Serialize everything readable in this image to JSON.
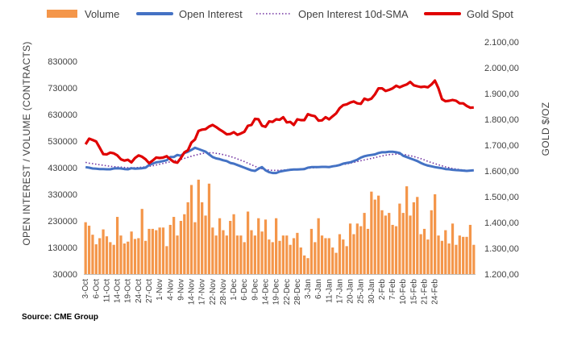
{
  "chart_data": {
    "type": "bar+line",
    "title": "",
    "source": "Source: CME Group",
    "legend": {
      "placement": "top",
      "items": [
        {
          "label": "Volume",
          "kind": "bar",
          "color": "#F4964A"
        },
        {
          "label": "Open Interest",
          "kind": "line",
          "color": "#4472C4"
        },
        {
          "label": "Open Interest 10d-SMA",
          "kind": "dotted",
          "color": "#7030A0"
        },
        {
          "label": "Gold Spot",
          "kind": "line",
          "color": "#E00000"
        }
      ]
    },
    "y_left": {
      "label": "OPEN INTEREST / VOLUME (CONTRACTS)",
      "range": [
        30000,
        900000
      ],
      "ticks": [
        "830000",
        "730000",
        "630000",
        "530000",
        "430000",
        "330000",
        "230000",
        "130000",
        "30000"
      ],
      "tick_values": [
        830000,
        730000,
        630000,
        530000,
        430000,
        330000,
        230000,
        130000,
        30000
      ]
    },
    "y_right": {
      "label": "GOLD $/OZ",
      "range": [
        1200,
        2100
      ],
      "ticks": [
        "2.100,00",
        "2.000,00",
        "1.900,00",
        "1.800,00",
        "1.700,00",
        "1.600,00",
        "1.500,00",
        "1.400,00",
        "1.300,00",
        "1.200,00"
      ],
      "tick_values": [
        2100,
        2000,
        1900,
        1800,
        1700,
        1600,
        1500,
        1400,
        1300,
        1200
      ]
    },
    "x_ticks": [
      "3-Oct",
      "6-Oct",
      "11-Oct",
      "14-Oct",
      "19-Oct",
      "24-Oct",
      "27-Oct",
      "1-Nov",
      "4-Nov",
      "9-Nov",
      "14-Nov",
      "17-Nov",
      "22-Nov",
      "28-Nov",
      "1-Dec",
      "6-Dec",
      "9-Dec",
      "14-Dec",
      "19-Dec",
      "22-Dec",
      "28-Dec",
      "3-Jan",
      "6-Jan",
      "11-Jan",
      "17-Jan",
      "20-Jan",
      "25-Jan",
      "30-Jan",
      "2-Feb",
      "7-Feb",
      "10-Feb",
      "15-Feb",
      "21-Feb",
      "24-Feb"
    ],
    "x_tick_index": [
      0,
      3,
      6,
      9,
      12,
      15,
      18,
      21,
      24,
      27,
      30,
      33,
      36,
      39,
      42,
      45,
      48,
      51,
      54,
      57,
      60,
      63,
      66,
      69,
      72,
      75,
      78,
      81,
      84,
      87,
      90,
      93,
      96,
      99
    ],
    "volume": [
      225000,
      212000,
      178000,
      142000,
      165000,
      198000,
      172000,
      150000,
      140000,
      245000,
      175000,
      145000,
      152000,
      190000,
      162000,
      165000,
      275000,
      155000,
      200000,
      200000,
      195000,
      205000,
      205000,
      135000,
      215000,
      245000,
      175000,
      230000,
      255000,
      300000,
      365000,
      225000,
      385000,
      300000,
      250000,
      370000,
      205000,
      175000,
      240000,
      195000,
      175000,
      230000,
      255000,
      175000,
      175000,
      150000,
      265000,
      195000,
      175000,
      240000,
      190000,
      235000,
      160000,
      150000,
      240000,
      155000,
      175000,
      175000,
      140000,
      165000,
      185000,
      130000,
      100000,
      90000,
      200000,
      150000,
      240000,
      175000,
      165000,
      165000,
      130000,
      110000,
      180000,
      160000,
      135000,
      220000,
      180000,
      220000,
      210000,
      260000,
      200000,
      340000,
      310000,
      325000,
      270000,
      250000,
      260000,
      215000,
      210000,
      295000,
      260000,
      360000,
      250000,
      300000,
      320000,
      180000,
      200000,
      160000,
      270000,
      330000,
      175000,
      155000,
      195000,
      145000,
      220000,
      140000,
      175000,
      170000,
      170000,
      215000,
      140000
    ],
    "open_interest": [
      432000,
      430000,
      427000,
      426000,
      425000,
      425000,
      424000,
      424000,
      427000,
      428000,
      427000,
      425000,
      424000,
      428000,
      426000,
      427000,
      428000,
      430000,
      440000,
      445000,
      450000,
      452000,
      455000,
      458000,
      470000,
      470000,
      478000,
      475000,
      485000,
      490000,
      497000,
      505000,
      500000,
      495000,
      490000,
      480000,
      470000,
      465000,
      462000,
      458000,
      455000,
      448000,
      445000,
      440000,
      435000,
      430000,
      425000,
      420000,
      418000,
      426000,
      432000,
      420000,
      413000,
      410000,
      410000,
      415000,
      418000,
      420000,
      422000,
      423000,
      423000,
      424000,
      425000,
      430000,
      432000,
      432000,
      432000,
      433000,
      433000,
      432000,
      435000,
      437000,
      440000,
      445000,
      448000,
      450000,
      455000,
      460000,
      468000,
      473000,
      476000,
      478000,
      480000,
      485000,
      488000,
      488000,
      490000,
      490000,
      488000,
      485000,
      475000,
      470000,
      465000,
      460000,
      455000,
      448000,
      442000,
      438000,
      435000,
      432000,
      430000,
      428000,
      425000,
      424000,
      422000,
      421000,
      420000,
      419000,
      418000,
      419000,
      420000
    ],
    "oi_sma": [
      450000,
      447000,
      445000,
      443000,
      441000,
      439000,
      437000,
      435000,
      434000,
      433000,
      432000,
      431000,
      430000,
      430000,
      430000,
      431000,
      432000,
      433000,
      435000,
      437000,
      440000,
      443000,
      446000,
      449000,
      452000,
      455000,
      458000,
      461000,
      465000,
      469000,
      473000,
      477000,
      480000,
      483000,
      485000,
      486000,
      486000,
      484000,
      482000,
      479000,
      476000,
      472000,
      468000,
      463000,
      458000,
      453000,
      447000,
      441000,
      435000,
      430000,
      426000,
      423000,
      421000,
      420000,
      420000,
      420000,
      421000,
      422000,
      423000,
      424000,
      425000,
      426000,
      427000,
      428000,
      429000,
      430000,
      431000,
      432000,
      433000,
      434000,
      436000,
      438000,
      440000,
      442000,
      444000,
      447000,
      450000,
      453000,
      456000,
      459000,
      462000,
      465000,
      468000,
      471000,
      474000,
      477000,
      479000,
      480000,
      481000,
      481000,
      480000,
      478000,
      475000,
      472000,
      468000,
      464000,
      459000,
      454000,
      449000,
      445000,
      441000,
      437000,
      433000,
      430000,
      427000,
      425000,
      423000,
      421000,
      420000,
      420000,
      420000
    ],
    "gold_spot": [
      1703,
      1725,
      1720,
      1714,
      1690,
      1665,
      1664,
      1671,
      1668,
      1660,
      1645,
      1640,
      1643,
      1633,
      1650,
      1660,
      1655,
      1645,
      1630,
      1640,
      1652,
      1650,
      1652,
      1657,
      1645,
      1635,
      1632,
      1650,
      1672,
      1680,
      1710,
      1722,
      1755,
      1760,
      1762,
      1772,
      1778,
      1770,
      1760,
      1752,
      1742,
      1743,
      1750,
      1740,
      1745,
      1752,
      1775,
      1778,
      1802,
      1800,
      1775,
      1771,
      1792,
      1790,
      1800,
      1798,
      1808,
      1788,
      1790,
      1778,
      1800,
      1797,
      1797,
      1820,
      1815,
      1812,
      1795,
      1796,
      1808,
      1800,
      1812,
      1823,
      1843,
      1855,
      1858,
      1865,
      1869,
      1862,
      1860,
      1880,
      1875,
      1880,
      1897,
      1920,
      1920,
      1910,
      1914,
      1920,
      1930,
      1924,
      1930,
      1935,
      1945,
      1932,
      1928,
      1925,
      1927,
      1924,
      1935,
      1950,
      1920,
      1878,
      1870,
      1872,
      1875,
      1872,
      1862,
      1862,
      1852,
      1845,
      1846
    ],
    "colors": {
      "volume": "#F4964A",
      "open_interest": "#4472C4",
      "oi_sma": "#7030A0",
      "gold_spot": "#E00000",
      "grid": "#D9D9D9",
      "axis": "#BFBFBF"
    },
    "grid": "none"
  }
}
